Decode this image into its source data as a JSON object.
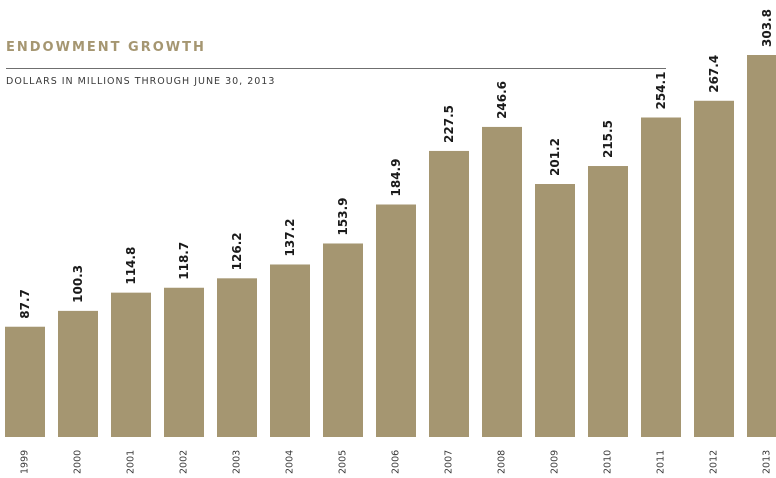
{
  "chart_data": {
    "type": "bar",
    "title": "ENDOWMENT GROWTH",
    "subtitle": "DOLLARS IN MILLIONS THROUGH JUNE 30, 2013",
    "xlabel": "",
    "ylabel": "",
    "ylim": [
      0,
      303.8
    ],
    "grid": false,
    "legend": "none",
    "categories": [
      "1999",
      "2000",
      "2001",
      "2002",
      "2003",
      "2004",
      "2005",
      "2006",
      "2007",
      "2008",
      "2009",
      "2010",
      "2011",
      "2012",
      "2013"
    ],
    "values": [
      87.7,
      100.3,
      114.8,
      118.7,
      126.2,
      137.2,
      153.9,
      184.9,
      227.5,
      246.6,
      201.2,
      215.5,
      254.1,
      267.4,
      303.8
    ],
    "value_labels": [
      "87.7",
      "100.3",
      "114.8",
      "118.7",
      "126.2",
      "137.2",
      "153.9",
      "184.9",
      "227.5",
      "246.6",
      "201.2",
      "215.5",
      "254.1",
      "267.4",
      "303.8"
    ],
    "bar_color": "#a59671",
    "label_color": "#1a1a1a"
  }
}
